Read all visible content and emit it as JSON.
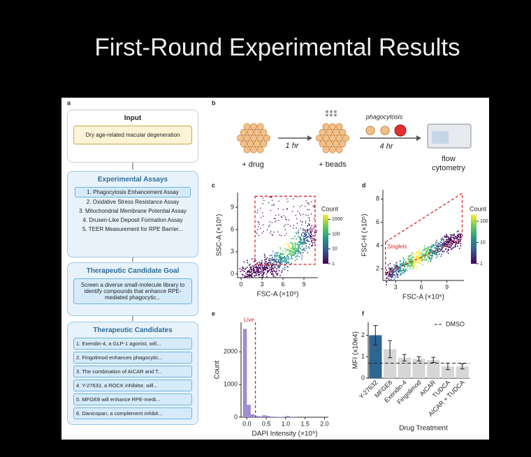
{
  "title": "First-Round Experimental Results",
  "panel_a": {
    "label": "a",
    "input": {
      "title": "Input",
      "text": "Dry age-related macular degeneration"
    },
    "assays": {
      "title": "Experimental Assays",
      "items": [
        "1. Phagocytosis Enhancement Assay",
        "2. Oxidative Stress Resistance Assay",
        "3. Mitochondrial Membrane Potential Assay",
        "4. Drusen-Like Deposit Formation Assay",
        "5. TEER Measurement for RPE Barrier..."
      ]
    },
    "goal": {
      "title": "Therapeutic Candidate Goal",
      "text": "Screen a diverse small-molecule library to identify compounds that enhance RPE-mediated phagocytic..."
    },
    "candidates": {
      "title": "Therapeutic Candidates",
      "items": [
        "1. Exendin-4, a GLP-1 agonist, will...",
        "2. Fingolimod enhances phagocytic...",
        "3. The combination of AICAR and T...",
        "4. Y-27632, a ROCK inhibitor, will...",
        "5. MFGE8 will enhance RPE-medi...",
        "6. Danicopan, a complement inhibit..."
      ]
    }
  },
  "panel_b": {
    "label": "b",
    "drug": "+ drug",
    "time1": "1 hr",
    "beads": "+ beads",
    "process": "phagocytosis",
    "time2": "4 hr",
    "readout": "flow cytometry"
  },
  "panel_c": {
    "label": "c",
    "xlabel": "FSC-A (×10⁵)",
    "ylabel": "SSC-A (×10⁵)",
    "xlim": [
      -0.5,
      11
    ],
    "ylim": [
      -0.5,
      11
    ],
    "xticks": [
      0,
      3,
      6,
      9
    ],
    "yticks": [
      0,
      3,
      6,
      9
    ],
    "colorbar": {
      "title": "Count",
      "lim": [
        1,
        2000
      ],
      "log": true,
      "ticks": [
        1,
        10,
        100,
        1000
      ]
    }
  },
  "panel_d": {
    "label": "d",
    "xlabel": "FSC-A (×10⁵)",
    "ylabel": "FSC-H (×10⁵)",
    "xlim": [
      1.5,
      11
    ],
    "ylim": [
      1,
      8.8
    ],
    "xticks": [
      3,
      6,
      9
    ],
    "yticks": [
      2,
      4,
      6,
      8
    ],
    "gate": "Singlets",
    "colorbar": {
      "title": "Count",
      "lim": [
        1,
        200
      ],
      "log": true,
      "ticks": [
        1,
        10,
        100
      ]
    }
  },
  "panel_e": {
    "label": "e",
    "type": "histogram",
    "xlabel": "DAPI Intensity (×10⁵)",
    "ylabel": "Count",
    "color": "#a08ccf",
    "bins": [
      -0.1,
      0.0,
      0.1,
      0.2,
      0.3,
      0.4,
      0.5,
      0.6,
      0.7,
      0.8,
      0.9,
      1.0,
      1.1,
      1.2,
      1.3,
      1.4,
      1.5,
      1.6,
      1.7,
      1.8,
      1.9
    ],
    "counts": [
      2700,
      380,
      90,
      40,
      30,
      60,
      40,
      20,
      15,
      10,
      5,
      40,
      5,
      5,
      0,
      0,
      0,
      0,
      0,
      0
    ],
    "xlim": [
      -0.15,
      2.1
    ],
    "ylim": [
      0,
      2900
    ],
    "xticks": [
      {
        "value": 0,
        "label": "0.0"
      },
      0.5,
      {
        "value": 1,
        "label": "1.0"
      },
      1.5,
      {
        "value": 2,
        "label": "2.0"
      }
    ],
    "yticks": [
      0,
      1000,
      2000
    ],
    "gate": {
      "label": "Live",
      "value": 0.22
    }
  },
  "panel_f": {
    "label": "f",
    "type": "bar",
    "xlabel": "Drug Treatment",
    "ylabel": "MFI (x10e4)",
    "categories": [
      "Y-27632",
      "MFGE8",
      "Exendin-4",
      "Fingolimod",
      "AICAR",
      "TUDCA",
      "AICAR + TUDCA"
    ],
    "values": [
      2.0,
      1.35,
      0.95,
      0.9,
      0.85,
      0.55,
      0.55
    ],
    "errors": [
      0.45,
      0.4,
      0.15,
      0.1,
      0.12,
      0.15,
      0.12
    ],
    "colors": [
      "#2f6591",
      "#d6d6d6",
      "#d6d6d6",
      "#d6d6d6",
      "#d6d6d6",
      "#d6d6d6",
      "#d6d6d6"
    ],
    "ylim": [
      0,
      2.6
    ],
    "yticks": [
      0,
      1,
      2
    ],
    "reference": {
      "name": "DMSO",
      "value": 0.7
    }
  }
}
